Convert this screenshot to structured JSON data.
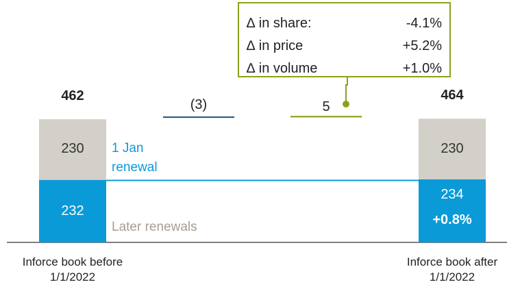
{
  "chart_data": {
    "type": "waterfall",
    "categories": [
      "Inforce book before 1/1/2022",
      null,
      null,
      "Inforce book after 1/1/2022"
    ],
    "series": [
      {
        "name": "1 Jan renewal",
        "color": "#0b9ad8",
        "values": [
          232,
          null,
          null,
          234
        ]
      },
      {
        "name": "Later renewals",
        "color": "#d3cfc9",
        "values": [
          230,
          null,
          null,
          230
        ]
      }
    ],
    "totals": [
      462,
      null,
      null,
      464
    ],
    "deltas": {
      "values": [
        null,
        -3,
        5,
        null
      ],
      "value_labels": [
        null,
        "(3)",
        "5",
        null
      ],
      "colors": [
        null,
        "#1d4f7c",
        "#7c9a0b",
        null
      ]
    },
    "change_label": "+0.8%",
    "annotation": {
      "color": "#8aa21a",
      "rows": [
        {
          "label": "∆ in share:",
          "value": "-4.1%"
        },
        {
          "label": "∆ in price",
          "value": "+5.2%"
        },
        {
          "label": "∆ in volume",
          "value": "+1.0%"
        }
      ]
    },
    "ylim": [
      0,
      470
    ]
  }
}
